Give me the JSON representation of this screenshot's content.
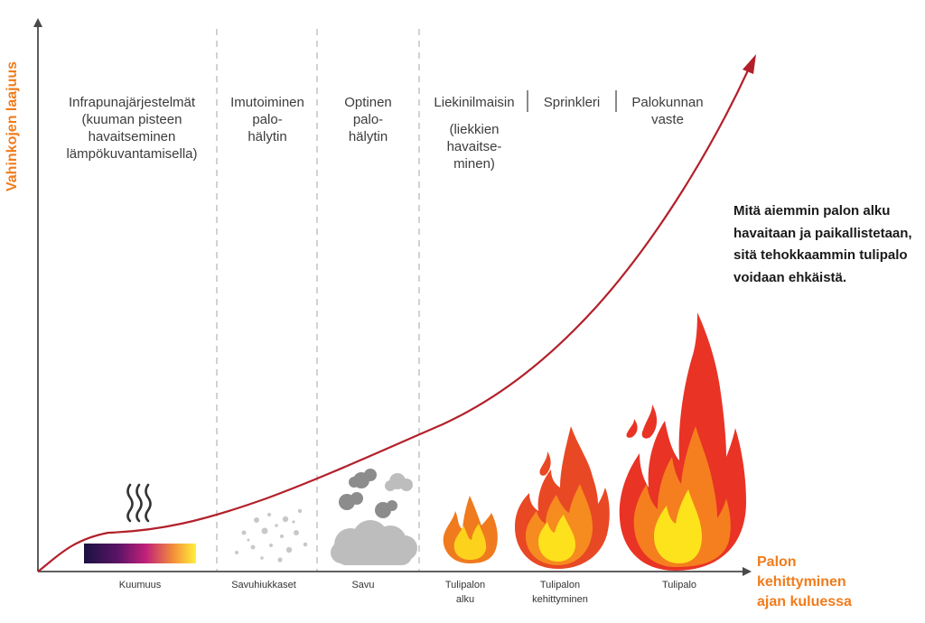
{
  "y_axis_label": "Vahinkojen laajuus",
  "x_axis_label": [
    "Palon",
    "kehittyminen",
    "ajan kuluessa"
  ],
  "detection_methods": [
    {
      "lines": [
        "Infrapunajärjestelmät",
        "(kuuman pisteen",
        "havaitseminen",
        "lämpökuvantamisella)"
      ]
    },
    {
      "lines": [
        "Imutoiminen",
        "palo-",
        "hälytin"
      ]
    },
    {
      "lines": [
        "Optinen",
        "palo-",
        "hälytin"
      ]
    },
    {
      "lines": [
        "Liekinilmaisin"
      ]
    },
    {
      "lines": [
        "(liekkien",
        "havaitse-",
        "minen)"
      ]
    },
    {
      "lines": [
        "Sprinkleri"
      ]
    },
    {
      "lines": [
        "Palokunnan",
        "vaste"
      ]
    }
  ],
  "stages": [
    {
      "lines": [
        "Kuumuus"
      ]
    },
    {
      "lines": [
        "Savuhiukkaset"
      ]
    },
    {
      "lines": [
        "Savu"
      ]
    },
    {
      "lines": [
        "Tulipalon",
        "alku"
      ]
    },
    {
      "lines": [
        "Tulipalon",
        "kehittyminen"
      ]
    },
    {
      "lines": [
        "Tulipalo"
      ]
    }
  ],
  "note": "Mitä aiemmin palon alku havaitaan ja paikallistetaan, sitä tehokkaammin tulipalo voidaan ehkäistä.",
  "colors": {
    "axis": "#4a4a4a",
    "curve": "#b3202a",
    "axis_label": "#f07c1c",
    "divider": "#b9b9b9"
  },
  "icons": [
    "heat-waves-icon",
    "heat-gradient-icon",
    "smoke-particles-icon",
    "smoke-cloud-icon",
    "small-flame-icon",
    "medium-flame-icon",
    "large-flame-icon"
  ]
}
